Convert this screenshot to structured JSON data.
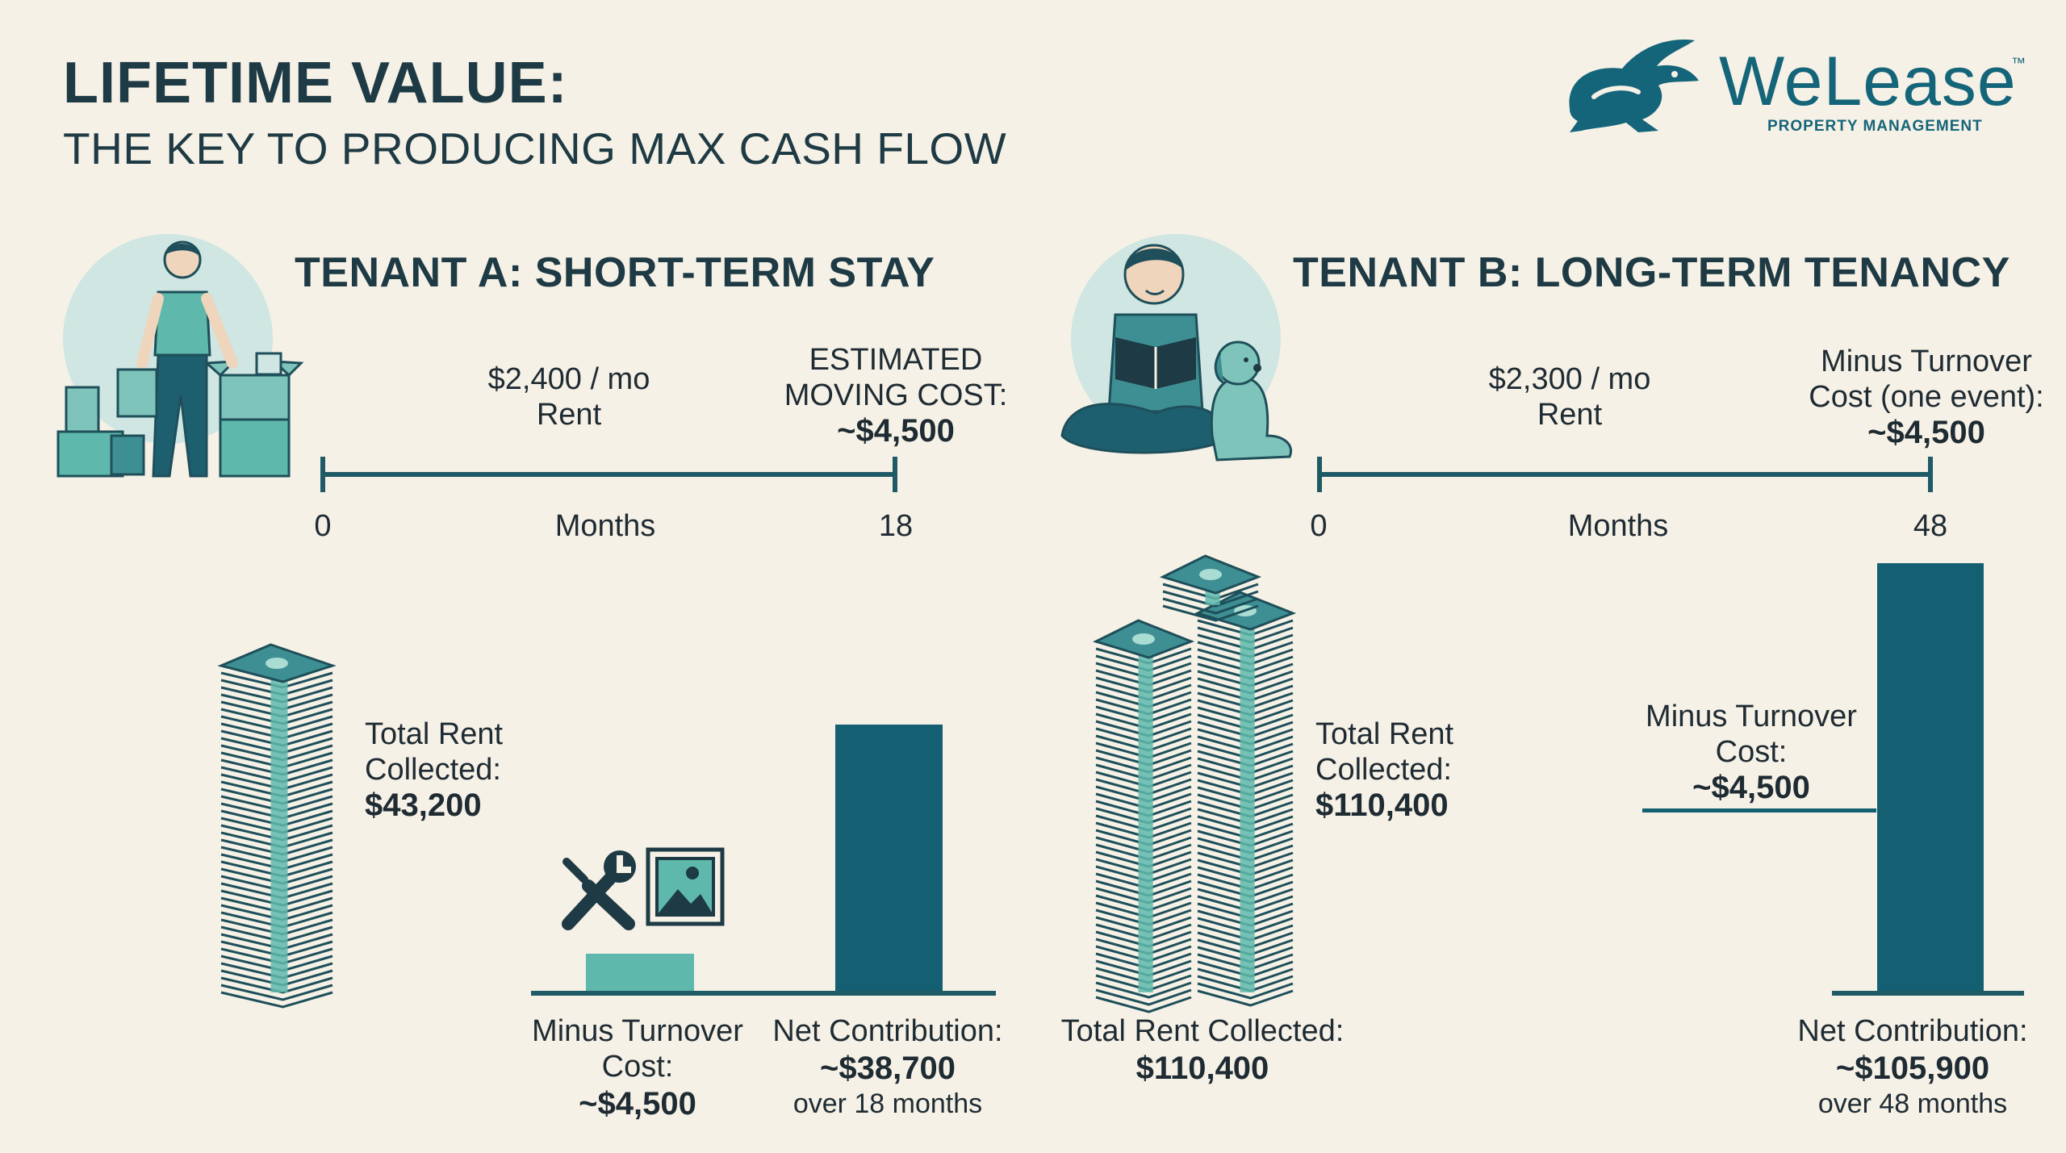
{
  "header": {
    "title": "LIFETIME VALUE:",
    "subtitle": "THE KEY TO PRODUCING MAX CASH FLOW"
  },
  "logo": {
    "name": "WeLease",
    "tm": "™",
    "tagline": "PROPERTY MANAGEMENT",
    "icon": "rabbit-icon"
  },
  "colors": {
    "dark_teal": "#145f72",
    "light_teal": "#5fb8ac",
    "navy": "#1e3a44",
    "background": "#f6f1e6"
  },
  "tenant_a": {
    "title": "TENANT A: SHORT-TERM STAY",
    "rent_line1": "$2,400 / mo",
    "rent_line2": "Rent",
    "moving_line1": "ESTIMATED",
    "moving_line2": "MOVING COST:",
    "moving_value": "~$4,500",
    "axis_start": "0",
    "axis_label": "Months",
    "axis_end": "18",
    "total_rent_line1": "Total Rent",
    "total_rent_line2": "Collected:",
    "total_rent_value": "$43,200",
    "turnover_label": "Minus Turnover Cost:",
    "turnover_value": "~$4,500",
    "net_label": "Net Contribution:",
    "net_value": "~$38,700",
    "net_period": "over 18 months"
  },
  "tenant_b": {
    "title": "TENANT B: LONG-TERM TENANCY",
    "rent_line1": "$2,300 / mo",
    "rent_line2": "Rent",
    "turnover_top_line1": "Minus Turnover",
    "turnover_top_line2": "Cost (one event):",
    "turnover_top_value": "~$4,500",
    "axis_start": "0",
    "axis_label": "Months",
    "axis_end": "48",
    "total_rent_line1": "Total Rent",
    "total_rent_line2": "Collected:",
    "total_rent_value": "$110,400",
    "total_rent_bottom_label": "Total Rent Collected:",
    "total_rent_bottom_value": "$110,400",
    "turnover_mid_line1": "Minus Turnover",
    "turnover_mid_line2": "Cost:",
    "turnover_mid_value": "~$4,500",
    "net_label": "Net Contribution:",
    "net_value": "~$105,900",
    "net_period": "over 48 months"
  },
  "chart_data": [
    {
      "type": "bar",
      "categories": [
        "Minus Turnover Cost",
        "Net Contribution"
      ],
      "values": [
        4500,
        38700
      ],
      "months": 18,
      "monthly_rent": 2400,
      "total_rent": 43200
    },
    {
      "type": "bar",
      "categories": [
        "Net Contribution"
      ],
      "values": [
        105900
      ],
      "turnover_cost": 4500,
      "months": 48,
      "monthly_rent": 2300,
      "total_rent": 110400
    }
  ]
}
